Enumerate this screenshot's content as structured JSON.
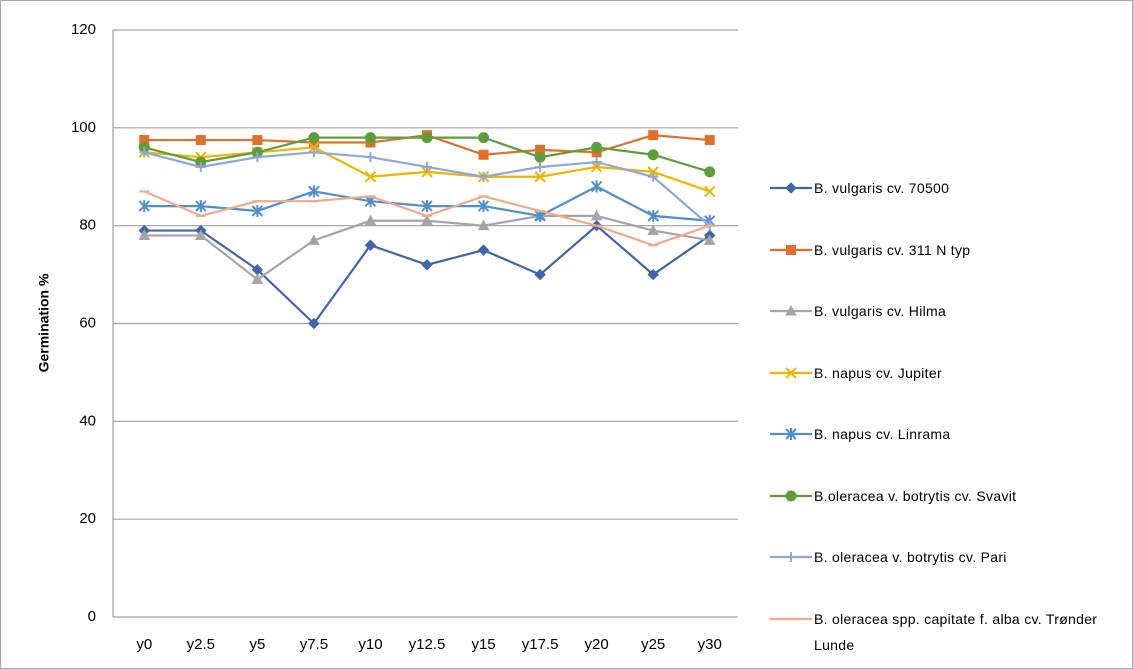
{
  "chart_data": {
    "type": "line",
    "y_label": "Germination %",
    "categories": [
      "y0",
      "y2.5",
      "y5",
      "y7.5",
      "y10",
      "y12.5",
      "y15",
      "y17.5",
      "y20",
      "y25",
      "y30"
    ],
    "ylim": [
      0,
      120
    ],
    "yticks": [
      0,
      20,
      40,
      60,
      80,
      100,
      120
    ],
    "grid": true,
    "series": [
      {
        "name": "B. vulgaris cv. 70500",
        "color": "#3f65ad",
        "marker": "diamond",
        "values": [
          79,
          79,
          71,
          60,
          76,
          72,
          75,
          70,
          80,
          70,
          78
        ]
      },
      {
        "name": "B. vulgaris cv. 311 N typ",
        "color": "#e0702a",
        "marker": "square",
        "values": [
          97.5,
          97.5,
          97.5,
          97,
          97,
          98.5,
          94.5,
          95.5,
          95,
          98.5,
          97.5
        ]
      },
      {
        "name": "B. vulgaris cv. Hilma",
        "color": "#a5a5a5",
        "marker": "triangle",
        "values": [
          78,
          78,
          69,
          77,
          81,
          81,
          80,
          82,
          82,
          79,
          77
        ]
      },
      {
        "name": "B. napus cv. Jupiter",
        "color": "#f0b400",
        "marker": "x",
        "values": [
          95,
          94,
          95,
          96,
          90,
          91,
          90,
          90,
          92,
          91,
          87
        ]
      },
      {
        "name": "B. napus cv. Linrama",
        "color": "#4f8fcc",
        "marker": "asterisk",
        "values": [
          84,
          84,
          83,
          87,
          85,
          84,
          84,
          82,
          88,
          82,
          81
        ]
      },
      {
        "name": "B.oleracea v. botrytis cv. Svavit",
        "color": "#5e9e3a",
        "marker": "circle",
        "values": [
          96,
          93,
          95,
          98,
          98,
          98,
          98,
          94,
          96,
          94.5,
          91
        ]
      },
      {
        "name": "B. oleracea v. botrytis cv. Pari",
        "color": "#8ea6da",
        "marker": "plus",
        "values": [
          95,
          92,
          94,
          95,
          94,
          92,
          90,
          92,
          93,
          90,
          80
        ]
      },
      {
        "name": "B. oleracea spp. capitate f. alba cv. Trønder Lunde",
        "color": "#f2a987",
        "marker": "dash",
        "values": [
          87,
          82,
          85,
          85,
          86,
          82,
          86,
          83,
          80,
          76,
          80
        ]
      }
    ]
  }
}
